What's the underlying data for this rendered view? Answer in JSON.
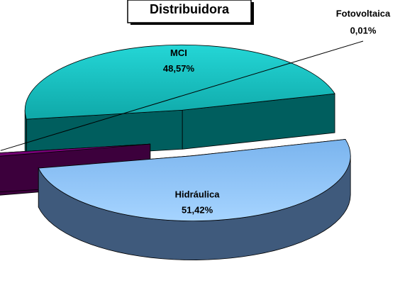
{
  "chart_data": {
    "type": "pie",
    "title": "Distribuidora",
    "categories": [
      "MCI",
      "Hidráulica",
      "Fotovoltaica"
    ],
    "values": [
      48.57,
      51.42,
      0.01
    ],
    "value_labels": [
      "48,57%",
      "51,42%",
      "0,01%"
    ],
    "colors": [
      "#22c8c8",
      "#99ccff",
      "#8a008a"
    ]
  }
}
